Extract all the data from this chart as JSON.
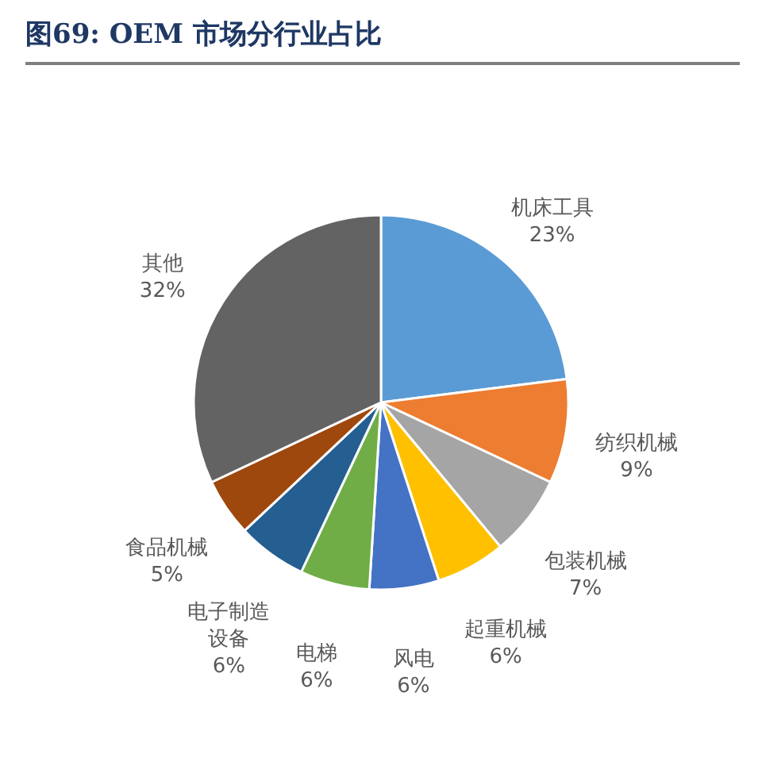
{
  "chart_data": {
    "type": "pie",
    "title": "图69: OEM 市场分行业占比",
    "categories": [
      "机床工具",
      "纺织机械",
      "包装机械",
      "起重机械",
      "风电",
      "电梯",
      "电子制造设备",
      "食品机械",
      "其他"
    ],
    "values": [
      23,
      9,
      7,
      6,
      6,
      6,
      6,
      5,
      32
    ],
    "colors": [
      "#5b9bd5",
      "#ed7d31",
      "#a5a5a5",
      "#ffc000",
      "#4472c4",
      "#70ad47",
      "#255e91",
      "#9e480e",
      "#636363"
    ],
    "value_labels": [
      "23%",
      "9%",
      "7%",
      "6%",
      "6%",
      "6%",
      "6%",
      "5%",
      "32%"
    ]
  }
}
